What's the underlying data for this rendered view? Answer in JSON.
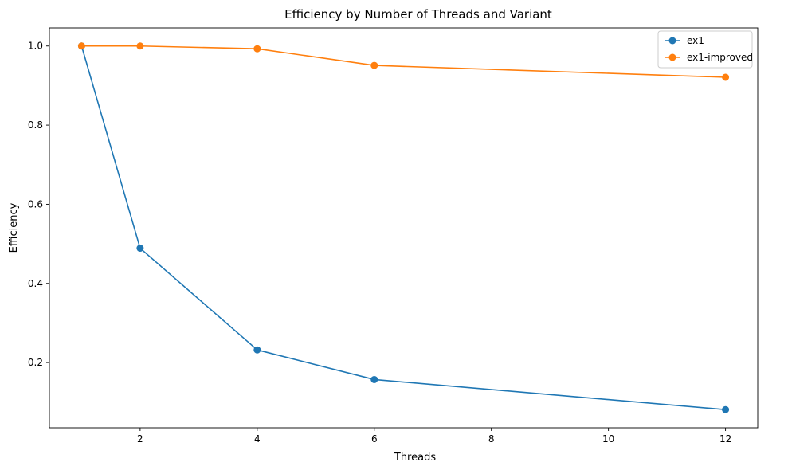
{
  "chart_data": {
    "type": "line",
    "title": "Efficiency by Number of Threads and Variant",
    "xlabel": "Threads",
    "ylabel": "Efficiency",
    "xlim": [
      0.45,
      12.55
    ],
    "ylim": [
      0.0351,
      1.0458
    ],
    "xticks": [
      2,
      4,
      6,
      8,
      10,
      12
    ],
    "yticks": [
      0.2,
      0.4,
      0.6,
      0.8,
      1.0
    ],
    "xtick_labels": [
      "2",
      "4",
      "6",
      "8",
      "10",
      "12"
    ],
    "ytick_labels": [
      "0.2",
      "0.4",
      "0.6",
      "0.8",
      "1.0"
    ],
    "grid": false,
    "legend_position": "top-right",
    "x": [
      1,
      2,
      4,
      6,
      12
    ],
    "series": [
      {
        "name": "ex1",
        "color": "#1f77b4",
        "values": [
          1.0,
          0.489,
          0.232,
          0.157,
          0.081
        ]
      },
      {
        "name": "ex1-improved",
        "color": "#ff7f0e",
        "values": [
          1.0,
          1.0,
          0.993,
          0.951,
          0.921
        ]
      }
    ]
  }
}
